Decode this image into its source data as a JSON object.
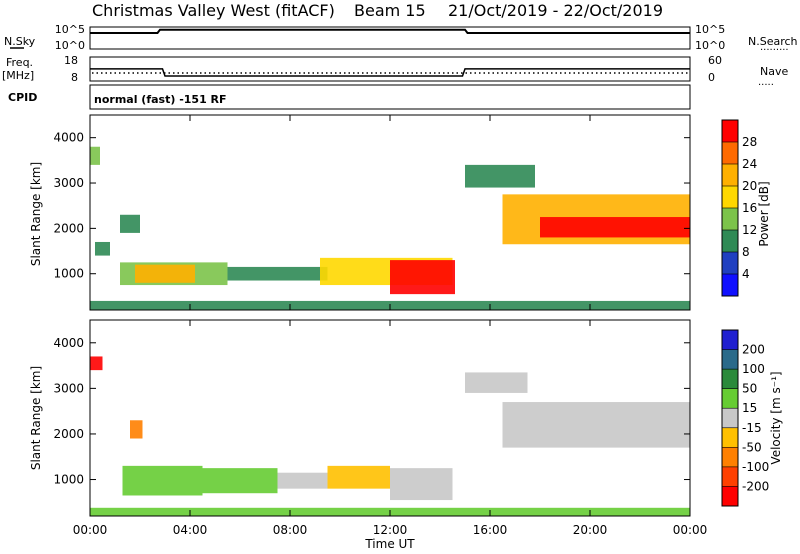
{
  "header": {
    "station": "Christmas Valley West (fitACF)",
    "beam": "Beam 15",
    "dates": "21/Oct/2019 - 22/Oct/2019"
  },
  "left_labels": {
    "nsky": "N.Sky",
    "freq_line1": "Freq.",
    "freq_line2": "[MHz]",
    "cpid": "CPID"
  },
  "right_labels": {
    "nsearch": "N.Search",
    "nave": "Nave"
  },
  "cpid_text": "normal (fast) -151 RF",
  "noise_panel": {
    "left_ticks": [
      "10^5",
      "10^0"
    ],
    "right_ticks": [
      "10^5",
      "10^0"
    ]
  },
  "freq_panel": {
    "left_ticks": [
      "18",
      "8"
    ],
    "right_ticks": [
      "60",
      "0"
    ]
  },
  "chart_data": [
    {
      "type": "line",
      "name": "noise",
      "x": [
        0,
        2.7,
        2.8,
        15,
        15.1,
        24
      ],
      "series": [
        {
          "values": [
            1.0,
            1.0,
            1.3,
            1.3,
            1.0,
            1.0
          ]
        }
      ]
    },
    {
      "type": "line",
      "name": "frequency",
      "x": [
        0,
        2.9,
        3.0,
        14.9,
        15.0,
        24
      ],
      "series": [
        {
          "values": [
            13.5,
            13.5,
            10.3,
            10.3,
            13.5,
            13.5
          ]
        }
      ]
    },
    {
      "type": "heatmap",
      "name": "power",
      "xlabel": "Time UT",
      "ylabel": "Slant Range [km]",
      "xlim": [
        0,
        24
      ],
      "ylim": [
        200,
        4500
      ],
      "yticks": [
        1000,
        2000,
        3000,
        4000
      ],
      "xticks": [
        "00:00",
        "04:00",
        "08:00",
        "12:00",
        "16:00",
        "20:00",
        "00:00"
      ],
      "colorbar": {
        "label": "Power [dB]",
        "ticks": [
          "28",
          "24",
          "20",
          "16",
          "12",
          "8",
          "4"
        ],
        "colors": [
          "#ff0000",
          "#ff6a00",
          "#ffb000",
          "#ffd800",
          "#7cc34a",
          "#2f8a55",
          "#2040c0",
          "#1010ff"
        ]
      },
      "regions": [
        {
          "t": [
            1.2,
            5.5
          ],
          "r": [
            750,
            1250
          ],
          "v": 12
        },
        {
          "t": [
            1.8,
            4.2
          ],
          "r": [
            800,
            1200
          ],
          "v": 22
        },
        {
          "t": [
            5.5,
            9.5
          ],
          "r": [
            850,
            1150
          ],
          "v": 9
        },
        {
          "t": [
            9.2,
            14.5
          ],
          "r": [
            750,
            1350
          ],
          "v": 18
        },
        {
          "t": [
            12.0,
            14.6
          ],
          "r": [
            550,
            1300
          ],
          "v": 28
        },
        {
          "t": [
            15.0,
            17.8
          ],
          "r": [
            2900,
            3400
          ],
          "v": 10
        },
        {
          "t": [
            16.5,
            24.0
          ],
          "r": [
            1650,
            2750
          ],
          "v": 22
        },
        {
          "t": [
            18.0,
            24.0
          ],
          "r": [
            1800,
            2250
          ],
          "v": 28
        },
        {
          "t": [
            0,
            24
          ],
          "r": [
            200,
            400
          ],
          "v": 8
        },
        {
          "t": [
            0.0,
            0.4
          ],
          "r": [
            3400,
            3800
          ],
          "v": 14
        },
        {
          "t": [
            0.2,
            0.8
          ],
          "r": [
            1400,
            1700
          ],
          "v": 9
        },
        {
          "t": [
            1.2,
            2.0
          ],
          "r": [
            1900,
            2300
          ],
          "v": 10
        }
      ]
    },
    {
      "type": "heatmap",
      "name": "velocity",
      "xlabel": "Time UT",
      "ylabel": "Slant Range [km]",
      "xlim": [
        0,
        24
      ],
      "ylim": [
        200,
        4500
      ],
      "yticks": [
        1000,
        2000,
        3000,
        4000
      ],
      "xticks": [
        "00:00",
        "04:00",
        "08:00",
        "12:00",
        "16:00",
        "20:00",
        "00:00"
      ],
      "colorbar": {
        "label": "Velocity [m s⁻¹]",
        "ticks": [
          "200",
          "100",
          "50",
          "15",
          "-15",
          "-50",
          "-100",
          "-200"
        ],
        "colors": [
          "#2020d0",
          "#2a6a8a",
          "#2a8a3a",
          "#66cc33",
          "#c8c8c8",
          "#ffc000",
          "#ff8000",
          "#ff4000",
          "#ff0000"
        ]
      },
      "regions": [
        {
          "t": [
            1.3,
            4.5
          ],
          "r": [
            650,
            1300
          ],
          "v": 40
        },
        {
          "t": [
            4.5,
            7.5
          ],
          "r": [
            700,
            1250
          ],
          "v": 30
        },
        {
          "t": [
            7.5,
            9.5
          ],
          "r": [
            800,
            1150
          ],
          "v": 0
        },
        {
          "t": [
            9.5,
            12.0
          ],
          "r": [
            800,
            1300
          ],
          "v": -40
        },
        {
          "t": [
            12.0,
            14.5
          ],
          "r": [
            550,
            1250
          ],
          "v": 0
        },
        {
          "t": [
            15.0,
            17.5
          ],
          "r": [
            2900,
            3350
          ],
          "v": 0
        },
        {
          "t": [
            16.5,
            24.0
          ],
          "r": [
            1700,
            2700
          ],
          "v": 0
        },
        {
          "t": [
            0,
            24
          ],
          "r": [
            200,
            380
          ],
          "v": 40
        },
        {
          "t": [
            0.0,
            0.5
          ],
          "r": [
            3400,
            3700
          ],
          "v": -200
        },
        {
          "t": [
            1.6,
            2.1
          ],
          "r": [
            1900,
            2300
          ],
          "v": -80
        }
      ]
    }
  ]
}
